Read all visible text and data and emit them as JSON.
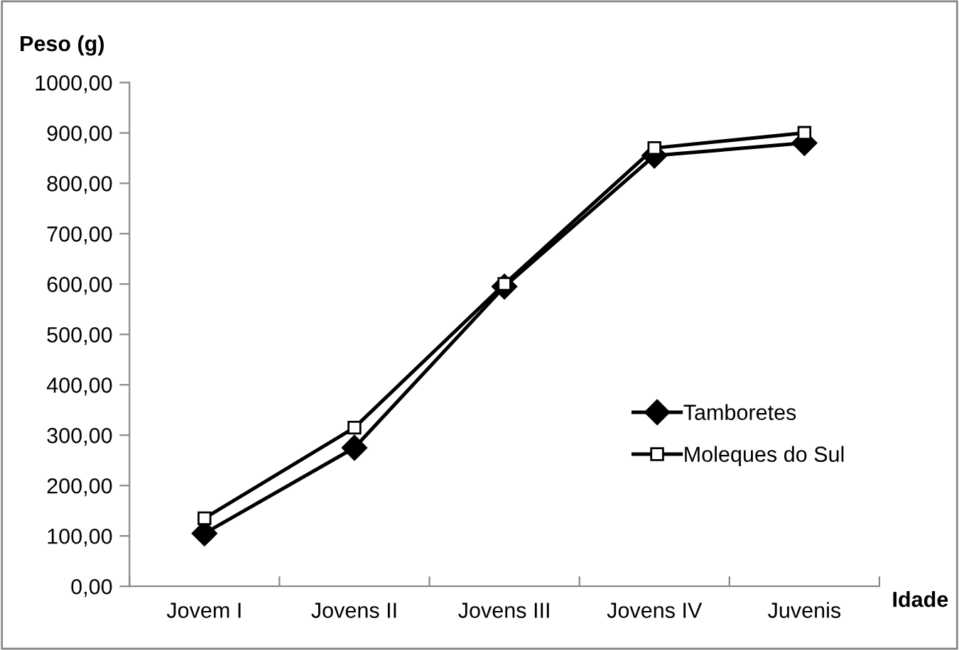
{
  "chart_data": {
    "type": "line",
    "ylabel": "Peso (g)",
    "xlabel": "Idade",
    "categories": [
      "Jovem I",
      "Jovens II",
      "Jovens III",
      "Jovens IV",
      "Juvenis"
    ],
    "series": [
      {
        "name": "Tamboretes",
        "color": "#000000",
        "marker": "diamond",
        "values": [
          105,
          275,
          595,
          855,
          880
        ]
      },
      {
        "name": "Moleques do Sul",
        "color": "#000000",
        "marker": "square",
        "values": [
          135,
          315,
          600,
          870,
          900
        ]
      }
    ],
    "ylim": [
      0,
      1000
    ],
    "yticks": [
      {
        "value": 0,
        "label": "0,00"
      },
      {
        "value": 100,
        "label": "100,00"
      },
      {
        "value": 200,
        "label": "200,00"
      },
      {
        "value": 300,
        "label": "300,00"
      },
      {
        "value": 400,
        "label": "400,00"
      },
      {
        "value": 500,
        "label": "500,00"
      },
      {
        "value": 600,
        "label": "600,00"
      },
      {
        "value": 700,
        "label": "700,00"
      },
      {
        "value": 800,
        "label": "800,00"
      },
      {
        "value": 900,
        "label": "900,00"
      },
      {
        "value": 1000,
        "label": "1000,00"
      }
    ],
    "grid": false,
    "legend": "right",
    "line_style": "solid"
  }
}
